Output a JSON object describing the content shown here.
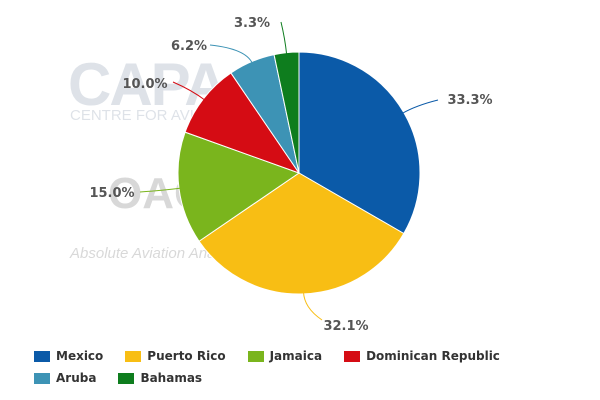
{
  "chart_data": {
    "type": "pie",
    "slices": [
      {
        "label": "Mexico",
        "value": 33.3,
        "display": "33.3%",
        "color": "#0b5aa8"
      },
      {
        "label": "Puerto Rico",
        "value": 32.1,
        "display": "32.1%",
        "color": "#f8be14"
      },
      {
        "label": "Jamaica",
        "value": 15.0,
        "display": "15.0%",
        "color": "#7ab51d"
      },
      {
        "label": "Dominican Republic",
        "value": 10.0,
        "display": "10.0%",
        "color": "#d50c14"
      },
      {
        "label": "Aruba",
        "value": 6.2,
        "display": "6.2%",
        "color": "#3d93b5"
      },
      {
        "label": "Bahamas",
        "value": 3.3,
        "display": "3.3%",
        "color": "#0e7d1e"
      }
    ],
    "legend_position": "bottom"
  },
  "watermark": {
    "logo_top": "CAPA",
    "logo_top_sub": "CENTRE FOR AVIATION",
    "logo_bottom": "OAG",
    "logo_bottom_sub": "Absolute Aviation Analytics"
  }
}
